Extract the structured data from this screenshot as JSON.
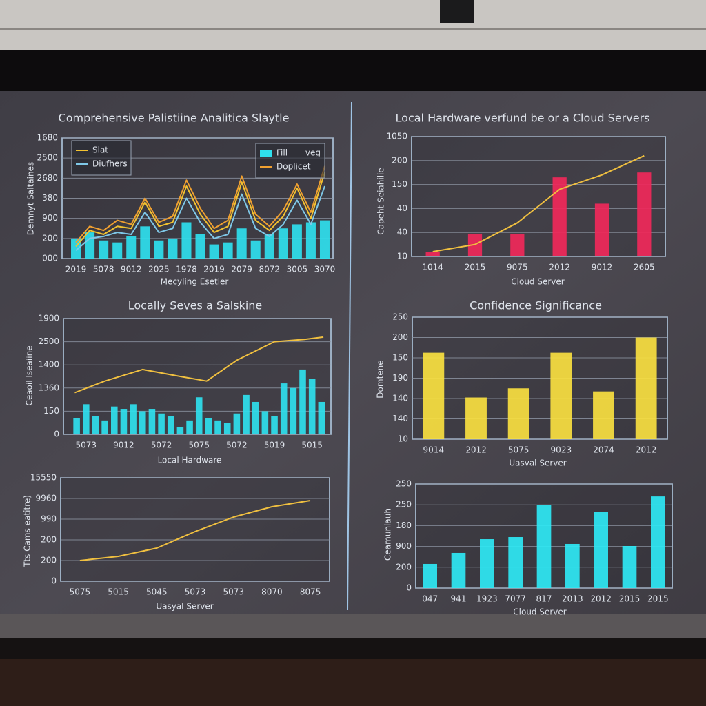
{
  "chart_data": [
    {
      "type": "line",
      "title": "Comprehensive Palistiine Analitica Slaytle",
      "y_label": "Demnyt Saltaines",
      "x_label": "Mecyling Esetler",
      "annotation": "veg",
      "grid": true,
      "x": [
        0,
        0.5,
        1,
        1.5,
        2,
        2.5,
        3,
        3.5,
        4,
        4.5,
        5,
        5.5,
        6,
        6.5,
        7,
        7.5,
        8,
        8.5,
        9
      ],
      "xlim": [
        -0.5,
        9.3
      ],
      "xticks": [
        {
          "value": 0,
          "label": "2019"
        },
        {
          "value": 1,
          "label": "5078"
        },
        {
          "value": 2,
          "label": "9012"
        },
        {
          "value": 3,
          "label": "2025"
        },
        {
          "value": 4,
          "label": "1978"
        },
        {
          "value": 5,
          "label": "2019"
        },
        {
          "value": 6,
          "label": "2079"
        },
        {
          "value": 7,
          "label": "8072"
        },
        {
          "value": 8,
          "label": "3005"
        },
        {
          "value": 9,
          "label": "3070"
        }
      ],
      "ylim": [
        0,
        6
      ],
      "yticks": [
        {
          "value": 0,
          "label": "000"
        },
        {
          "value": 1,
          "label": "200"
        },
        {
          "value": 2,
          "label": "900"
        },
        {
          "value": 3,
          "label": "380"
        },
        {
          "value": 4,
          "label": "2680"
        },
        {
          "value": 5,
          "label": "2500"
        },
        {
          "value": 6,
          "label": "1680"
        }
      ],
      "series": [
        {
          "name": "Slat",
          "type": "line",
          "color": "#f2c230",
          "values": [
            0.6,
            1.4,
            1.2,
            1.6,
            1.5,
            2.8,
            1.6,
            1.8,
            3.6,
            2.2,
            1.3,
            1.6,
            3.8,
            1.9,
            1.4,
            2.1,
            3.5,
            2.0,
            4.3
          ]
        },
        {
          "name": "Diufhers",
          "type": "line",
          "color": "#7fc8e8",
          "values": [
            0.4,
            1.0,
            1.1,
            1.3,
            1.2,
            2.3,
            1.3,
            1.5,
            3.0,
            1.8,
            1.0,
            1.2,
            3.2,
            1.5,
            1.1,
            1.7,
            2.9,
            1.7,
            3.6
          ]
        },
        {
          "name": "Fill",
          "type": "bar",
          "color": "#2fe0ee",
          "values": [
            1.0,
            1.3,
            0.9,
            0.8,
            1.1,
            1.6,
            0.9,
            1.0,
            1.8,
            1.2,
            0.7,
            0.8,
            1.5,
            0.9,
            1.2,
            1.5,
            1.7,
            1.8,
            1.9
          ]
        },
        {
          "name": "Doplicet",
          "type": "line",
          "color": "#f0a030",
          "values": [
            0.8,
            1.6,
            1.4,
            1.9,
            1.7,
            3.0,
            1.8,
            2.1,
            3.9,
            2.5,
            1.5,
            1.9,
            4.1,
            2.2,
            1.6,
            2.4,
            3.7,
            2.3,
            4.6
          ]
        }
      ]
    },
    {
      "type": "bar",
      "title": "Local Hardware verfund be or a Cloud Servers",
      "y_label": "Capeht Seiahilie",
      "x_label": "Cloud Server",
      "grid": true,
      "categories": [
        "1014",
        "2015",
        "9075",
        "2012",
        "9012",
        "2605"
      ],
      "ylim": [
        0,
        5
      ],
      "yticks": [
        {
          "value": 0,
          "label": "10"
        },
        {
          "value": 1,
          "label": "40"
        },
        {
          "value": 2,
          "label": "40"
        },
        {
          "value": 3,
          "label": "150"
        },
        {
          "value": 4,
          "label": "200"
        },
        {
          "value": 5,
          "label": "1050"
        }
      ],
      "series": [
        {
          "type": "bar",
          "color": "#f0285a",
          "values": [
            0.2,
            0.95,
            0.95,
            3.3,
            2.2,
            3.5
          ]
        },
        {
          "type": "line",
          "color": "#f0c040",
          "values": [
            0.2,
            0.5,
            1.4,
            2.8,
            3.4,
            4.2
          ]
        }
      ]
    },
    {
      "type": "line",
      "title": "Locally Seves a Salskine",
      "y_label": "Ceaoil Iseaiine",
      "x_label": "Local Hardware",
      "grid": true,
      "xlim": [
        -0.6,
        6.5
      ],
      "xticks": [
        {
          "value": 0,
          "label": "5073"
        },
        {
          "value": 1,
          "label": "9012"
        },
        {
          "value": 2,
          "label": "5072"
        },
        {
          "value": 3,
          "label": "5075"
        },
        {
          "value": 4,
          "label": "5072"
        },
        {
          "value": 5,
          "label": "5019"
        },
        {
          "value": 6,
          "label": "5015"
        }
      ],
      "ylim": [
        0,
        5
      ],
      "yticks": [
        {
          "value": 0,
          "label": "0"
        },
        {
          "value": 1,
          "label": "150"
        },
        {
          "value": 2,
          "label": "1360"
        },
        {
          "value": 3,
          "label": "1400"
        },
        {
          "value": 4,
          "label": "2500"
        },
        {
          "value": 5,
          "label": "1900"
        }
      ],
      "series": [
        {
          "type": "bar",
          "color": "#2fe0ee",
          "x": [
            -0.25,
            0,
            0.25,
            0.5,
            0.75,
            1,
            1.25,
            1.5,
            1.75,
            2,
            2.25,
            2.5,
            2.75,
            3,
            3.25,
            3.5,
            3.75,
            4,
            4.25,
            4.5,
            4.75,
            5,
            5.25,
            5.5,
            5.75,
            6,
            6.25
          ],
          "values": [
            0.7,
            1.3,
            0.8,
            0.6,
            1.2,
            1.1,
            1.3,
            1.0,
            1.1,
            0.9,
            0.8,
            0.3,
            0.6,
            1.6,
            0.7,
            0.6,
            0.5,
            0.9,
            1.7,
            1.4,
            1.0,
            0.8,
            2.2,
            2.0,
            2.8,
            2.4,
            1.4
          ]
        },
        {
          "type": "line",
          "color": "#f0c040",
          "x": [
            -0.3,
            0.5,
            1.5,
            2.5,
            3.2,
            4.0,
            5.0,
            5.8,
            6.3
          ],
          "values": [
            1.8,
            2.3,
            2.8,
            2.5,
            2.3,
            3.2,
            4.0,
            4.1,
            4.2
          ]
        }
      ]
    },
    {
      "type": "bar",
      "title": "Confidence Significance",
      "y_label": "Domtene",
      "x_label": "Uasval Server",
      "grid": true,
      "categories": [
        "9014",
        "2012",
        "5075",
        "9023",
        "2074",
        "2012"
      ],
      "ylim": [
        0,
        6
      ],
      "yticks": [
        {
          "value": 0,
          "label": "10"
        },
        {
          "value": 1,
          "label": "140"
        },
        {
          "value": 2,
          "label": "140"
        },
        {
          "value": 3,
          "label": "190"
        },
        {
          "value": 4,
          "label": "150"
        },
        {
          "value": 5,
          "label": "200"
        },
        {
          "value": 6,
          "label": "250"
        }
      ],
      "series": [
        {
          "type": "bar",
          "color": "#f8e040",
          "values": [
            4.25,
            2.05,
            2.5,
            4.25,
            2.35,
            5.0
          ]
        }
      ]
    },
    {
      "type": "line",
      "y_label": "Tts Cams eatitre)",
      "x_label": "Uasyal Server",
      "grid": true,
      "categories": [
        "5075",
        "5015",
        "5045",
        "5073",
        "5073",
        "8070",
        "8075"
      ],
      "ylim": [
        0,
        5
      ],
      "yticks": [
        {
          "value": 0,
          "label": "0"
        },
        {
          "value": 1,
          "label": "200"
        },
        {
          "value": 2,
          "label": "200"
        },
        {
          "value": 3,
          "label": "990"
        },
        {
          "value": 4,
          "label": "9960"
        },
        {
          "value": 5,
          "label": "15550"
        }
      ],
      "series": [
        {
          "type": "line",
          "color": "#f0c040",
          "values": [
            1.0,
            1.2,
            1.6,
            2.4,
            3.1,
            3.6,
            3.9
          ]
        }
      ]
    },
    {
      "type": "bar",
      "y_label": "Ceamunlauh",
      "x_label": "Cloud Server",
      "grid": true,
      "categories": [
        "047",
        "941",
        "1923",
        "7077",
        "817",
        "2013",
        "2012",
        "2015",
        "2015"
      ],
      "ylim": [
        0,
        5
      ],
      "yticks": [
        {
          "value": 0,
          "label": "0"
        },
        {
          "value": 1,
          "label": "200"
        },
        {
          "value": 2,
          "label": "900"
        },
        {
          "value": 3,
          "label": "180"
        },
        {
          "value": 4,
          "label": "250"
        },
        {
          "value": 5,
          "label": "250"
        }
      ],
      "series": [
        {
          "type": "bar",
          "color": "#2fe8f4",
          "values": [
            1.16,
            1.69,
            2.35,
            2.45,
            4.0,
            2.12,
            3.67,
            2.02,
            4.4
          ]
        }
      ]
    }
  ]
}
